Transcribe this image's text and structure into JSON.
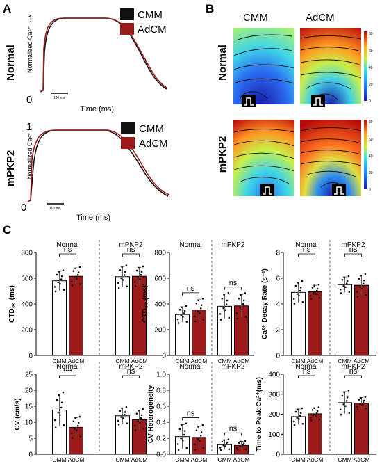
{
  "panel_letters": [
    "A",
    "B",
    "C"
  ],
  "colors": {
    "cmm": "#111111",
    "adcm": "#9b1b1b",
    "map_low": "#1a1aa6",
    "map_high": "#b40a0a"
  },
  "trace_panels": [
    {
      "row_label": "Normal",
      "peak": "1",
      "zero": "0",
      "ylabel": "Normalized Ca²⁺",
      "xlabel": "Time (ms)",
      "scalebar": "100 ms",
      "legend": [
        "CMM",
        "AdCM"
      ]
    },
    {
      "row_label": "mPKP2",
      "peak": "1",
      "zero": "0",
      "ylabel": "Normalized Ca²⁺",
      "xlabel": "Time (ms)",
      "scalebar": "100 ms",
      "legend": [
        "CMM",
        "AdCM"
      ]
    }
  ],
  "maps": {
    "columns": [
      "CMM",
      "AdCM"
    ],
    "rows": [
      "Normal",
      "mPKP2"
    ],
    "colorbar_ticks": [
      "80",
      "60",
      "40",
      "20",
      "0"
    ]
  },
  "chart_data": [
    {
      "type": "bar",
      "title": "Normal",
      "ylabel": "CTD₈₀ (ms)",
      "categories": [
        "CMM",
        "AdCM"
      ],
      "values": [
        580,
        615
      ],
      "errors": [
        75,
        65
      ],
      "ylim": [
        0,
        800
      ],
      "yticks": [
        "0",
        "200",
        "400",
        "600",
        "800"
      ],
      "significance": "ns"
    },
    {
      "type": "bar",
      "title": "mPKP2",
      "ylabel": "CTD₈₀ (ms)",
      "categories": [
        "CMM",
        "AdCM"
      ],
      "values": [
        612,
        615
      ],
      "errors": [
        80,
        70
      ],
      "ylim": [
        0,
        800
      ],
      "significance": "ns"
    },
    {
      "type": "bar",
      "title": "Normal",
      "ylabel": "CTD₃₀ (ms)",
      "categories": [
        "CMM",
        "AdCM"
      ],
      "values": [
        318,
        353
      ],
      "errors": [
        60,
        80
      ],
      "ylim": [
        0,
        800
      ],
      "yticks": [
        "0",
        "200",
        "400",
        "600",
        "800"
      ],
      "significance": "ns"
    },
    {
      "type": "bar",
      "title": "mPKP2",
      "ylabel": "CTD₃₀ (ms)",
      "categories": [
        "CMM",
        "AdCM"
      ],
      "values": [
        382,
        385
      ],
      "errors": [
        95,
        90
      ],
      "ylim": [
        0,
        800
      ],
      "significance": "ns"
    },
    {
      "type": "bar",
      "title": "Normal",
      "ylabel": "Ca²⁺ Decay Rate (s⁻¹)",
      "categories": [
        "CMM",
        "AdCM"
      ],
      "values": [
        4.9,
        4.95
      ],
      "errors": [
        0.8,
        0.5
      ],
      "ylim": [
        0,
        8
      ],
      "yticks": [
        "0",
        "2",
        "4",
        "6",
        "8"
      ],
      "significance": "ns"
    },
    {
      "type": "bar",
      "title": "mPKP2",
      "ylabel": "Ca²⁺ Decay Rate (s⁻¹)",
      "categories": [
        "CMM",
        "AdCM"
      ],
      "values": [
        5.5,
        5.45
      ],
      "errors": [
        0.6,
        0.8
      ],
      "ylim": [
        0,
        8
      ],
      "significance": "ns"
    },
    {
      "type": "bar",
      "title": "Normal",
      "ylabel": "CV (cm/s)",
      "categories": [
        "CMM",
        "AdCM"
      ],
      "values": [
        13.8,
        8.4
      ],
      "errors": [
        5.0,
        3.0
      ],
      "ylim": [
        0,
        25
      ],
      "yticks": [
        "0",
        "5",
        "10",
        "15",
        "20",
        "25"
      ],
      "significance": "****"
    },
    {
      "type": "bar",
      "title": "mPKP2",
      "ylabel": "CV (cm/s)",
      "categories": [
        "CMM",
        "AdCM"
      ],
      "values": [
        12.0,
        10.8
      ],
      "errors": [
        2.5,
        3.0
      ],
      "ylim": [
        0,
        25
      ],
      "significance": "ns"
    },
    {
      "type": "bar",
      "title": "Normal",
      "ylabel": "CV Heterogeneity",
      "categories": [
        "CMM",
        "AdCM"
      ],
      "values": [
        0.22,
        0.21
      ],
      "errors": [
        0.15,
        0.14
      ],
      "ylim": [
        0,
        1.0
      ],
      "yticks": [
        "0.0",
        "0.2",
        "0.4",
        "0.6",
        "0.8",
        "1.0"
      ],
      "significance": "ns"
    },
    {
      "type": "bar",
      "title": "mPKP2",
      "ylabel": "CV Heterogeneity",
      "categories": [
        "CMM",
        "AdCM"
      ],
      "values": [
        0.12,
        0.11
      ],
      "errors": [
        0.06,
        0.05
      ],
      "ylim": [
        0,
        1.0
      ],
      "significance": "ns"
    },
    {
      "type": "bar",
      "title": "Normal",
      "ylabel": "Time to Peak Ca²⁺(ms)",
      "categories": [
        "CMM",
        "AdCM"
      ],
      "values": [
        188,
        202
      ],
      "errors": [
        38,
        30
      ],
      "ylim": [
        0,
        400
      ],
      "yticks": [
        "0",
        "100",
        "200",
        "300",
        "400"
      ],
      "significance": "ns"
    },
    {
      "type": "bar",
      "title": "mPKP2",
      "ylabel": "Time to Peak Ca²⁺(ms)",
      "categories": [
        "CMM",
        "AdCM"
      ],
      "values": [
        258,
        255
      ],
      "errors": [
        55,
        28
      ],
      "ylim": [
        0,
        400
      ],
      "significance": "ns"
    }
  ]
}
